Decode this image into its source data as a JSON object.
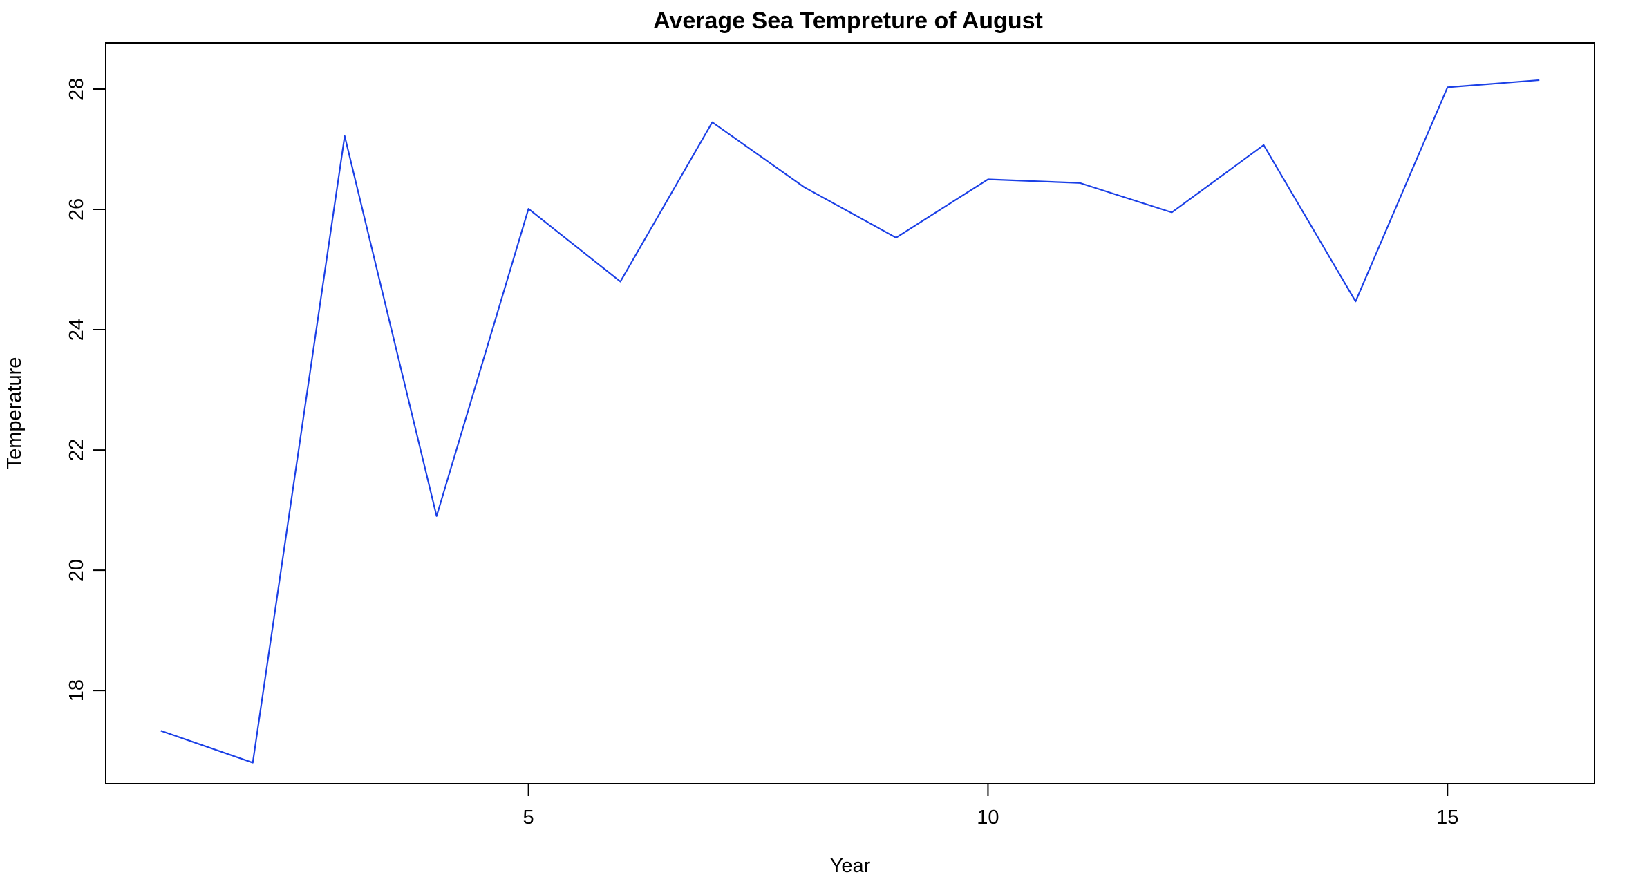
{
  "chart_data": {
    "type": "line",
    "title": "Average Sea Tempreture of August",
    "xlabel": "Year",
    "ylabel": "Temperature",
    "x": [
      1,
      2,
      3,
      4,
      5,
      6,
      7,
      8,
      9,
      10,
      11,
      12,
      13,
      14,
      15,
      16
    ],
    "series": [
      {
        "values": [
          17.33,
          16.8,
          27.22,
          20.9,
          26.01,
          24.8,
          27.45,
          26.37,
          25.53,
          26.5,
          26.44,
          25.95,
          27.07,
          24.47,
          28.03,
          28.15
        ],
        "color": "#1a3fe6"
      }
    ],
    "xlim": [
      0.4,
      16.6
    ],
    "ylim": [
      16.45,
      28.77
    ],
    "xticks": [
      5,
      10,
      15
    ],
    "yticks": [
      18,
      20,
      22,
      24,
      26,
      28
    ],
    "grid": false,
    "legend": "none"
  }
}
